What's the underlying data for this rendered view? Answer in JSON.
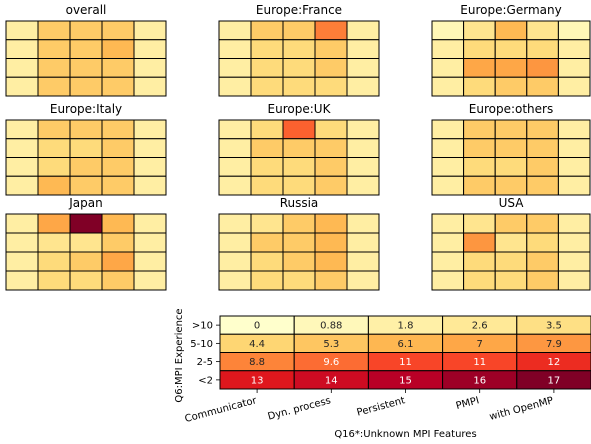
{
  "chart_data": {
    "type": "heatmap",
    "colormap": "YlOrRd",
    "color_range": [
      0,
      17
    ],
    "panels": [
      {
        "title": "overall",
        "values": [
          [
            2,
            5,
            5,
            5,
            2
          ],
          [
            2,
            5,
            5,
            6,
            2
          ],
          [
            2,
            5,
            5,
            5,
            2
          ],
          [
            2,
            5,
            5,
            5,
            2
          ]
        ]
      },
      {
        "title": "Europe:France",
        "values": [
          [
            2,
            5,
            5,
            9,
            2
          ],
          [
            2,
            4,
            4,
            5,
            2
          ],
          [
            2,
            4,
            4,
            5,
            2
          ],
          [
            2,
            4,
            4,
            4,
            2
          ]
        ]
      },
      {
        "title": "Europe:Germany",
        "values": [
          [
            1,
            3,
            6,
            3,
            1
          ],
          [
            2,
            4,
            4,
            4,
            2
          ],
          [
            2,
            7,
            7,
            8,
            2
          ],
          [
            2,
            4,
            5,
            5,
            2
          ]
        ]
      },
      {
        "title": "Europe:Italy",
        "values": [
          [
            2,
            5,
            5,
            5,
            2
          ],
          [
            2,
            4,
            4,
            5,
            2
          ],
          [
            2,
            4,
            5,
            5,
            2
          ],
          [
            2,
            6,
            5,
            5,
            2
          ]
        ]
      },
      {
        "title": "Europe:UK",
        "values": [
          [
            2,
            4,
            10,
            4,
            2
          ],
          [
            2,
            5,
            5,
            5,
            2
          ],
          [
            2,
            4,
            4,
            5,
            2
          ],
          [
            2,
            4,
            4,
            5,
            2
          ]
        ]
      },
      {
        "title": "Europe:others",
        "values": [
          [
            2,
            5,
            5,
            5,
            2
          ],
          [
            2,
            5,
            5,
            5,
            2
          ],
          [
            2,
            4,
            4,
            5,
            2
          ],
          [
            2,
            5,
            5,
            5,
            2
          ]
        ]
      },
      {
        "title": "Japan",
        "values": [
          [
            2,
            7,
            17,
            6,
            2
          ],
          [
            2,
            3,
            3,
            5,
            2
          ],
          [
            2,
            4,
            5,
            7,
            2
          ],
          [
            2,
            4,
            4,
            5,
            2
          ]
        ]
      },
      {
        "title": "Russia",
        "values": [
          [
            2,
            3,
            5,
            6,
            2
          ],
          [
            2,
            5,
            5,
            6,
            2
          ],
          [
            2,
            4,
            5,
            6,
            2
          ],
          [
            2,
            4,
            4,
            5,
            2
          ]
        ]
      },
      {
        "title": "USA",
        "values": [
          [
            2,
            3,
            5,
            5,
            2
          ],
          [
            2,
            8,
            3,
            4,
            2
          ],
          [
            2,
            4,
            4,
            5,
            2
          ],
          [
            2,
            4,
            4,
            5,
            2
          ]
        ]
      },
      {
        "title": "",
        "annotated": true,
        "xlabel": "Q16*:Unknown MPI Features",
        "ylabel": "Q6:MPI Experience",
        "x_categories": [
          "Communicator",
          "Dyn. process",
          "Persistent",
          "PMPI",
          "with OpenMP"
        ],
        "y_categories": [
          ">10",
          "5-10",
          "2-5",
          "<2"
        ],
        "values": [
          [
            0,
            0.88,
            1.8,
            2.6,
            3.5
          ],
          [
            4.4,
            5.3,
            6.1,
            7,
            7.9
          ],
          [
            8.8,
            9.6,
            11,
            11,
            12
          ],
          [
            13,
            14,
            15,
            16,
            17
          ]
        ]
      }
    ]
  }
}
